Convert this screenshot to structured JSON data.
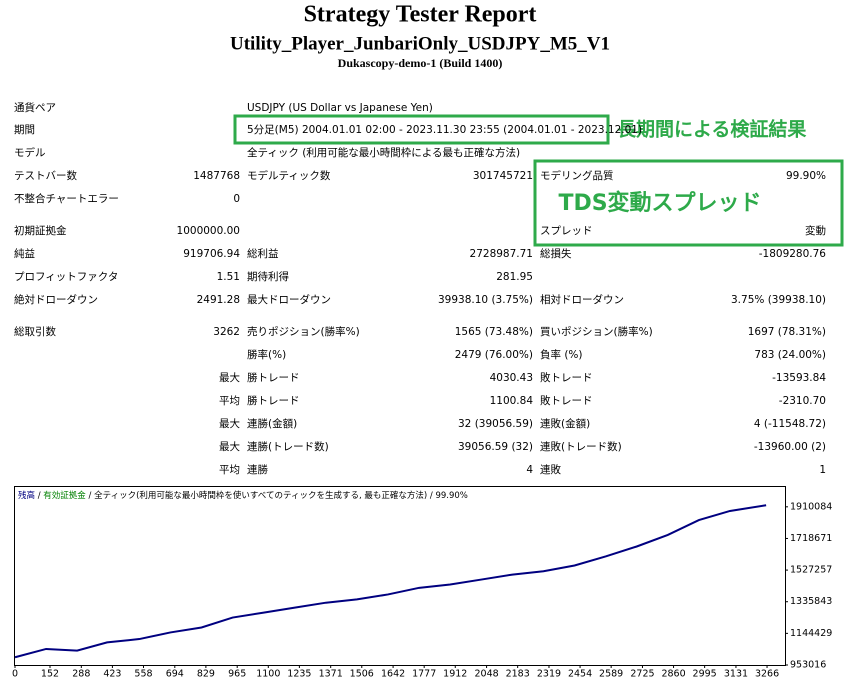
{
  "header": {
    "title": "Strategy Tester Report",
    "subtitle": "Utility_Player_JunbariOnly_USDJPY_M5_V1",
    "server": "Dukascopy-demo-1 (Build 1400)"
  },
  "table": {
    "rows": [
      [
        "通貨ペア",
        null,
        "USDJPY (US Dollar vs Japanese Yen)",
        null,
        null,
        null
      ],
      [
        "期間",
        null,
        "5分足(M5) 2004.01.01 02:00 - 2023.11.30 23:55 (2004.01.01 - 2023.12.01)",
        null,
        null,
        null
      ],
      [
        "モデル",
        null,
        "全ティック (利用可能な最小時間枠による最も正確な方法)",
        null,
        null,
        null
      ],
      [
        "テストバー数",
        "1487768",
        "モデルティック数",
        "301745721",
        "モデリング品質",
        "99.90%"
      ],
      [
        "不整合チャートエラー",
        "0",
        null,
        null,
        null,
        null
      ],
      [
        "初期証拠金",
        "1000000.00",
        null,
        null,
        "スプレッド",
        "変動"
      ],
      [
        "純益",
        "919706.94",
        "総利益",
        "2728987.71",
        "総損失",
        "-1809280.76"
      ],
      [
        "プロフィットファクタ",
        "1.51",
        "期待利得",
        "281.95",
        null,
        null
      ],
      [
        "絶対ドローダウン",
        "2491.28",
        "最大ドローダウン",
        "39938.10 (3.75%)",
        "相対ドローダウン",
        "3.75% (39938.10)"
      ],
      [
        "総取引数",
        "3262",
        "売りポジション(勝率%)",
        "1565 (73.48%)",
        "買いポジション(勝率%)",
        "1697 (78.31%)"
      ],
      [
        null,
        null,
        "勝率(%)",
        "2479 (76.00%)",
        "負率 (%)",
        "783 (24.00%)"
      ],
      [
        null,
        "最大",
        "勝トレード",
        "4030.43",
        "敗トレード",
        "-13593.84"
      ],
      [
        null,
        "平均",
        "勝トレード",
        "1100.84",
        "敗トレード",
        "-2310.70"
      ],
      [
        null,
        "最大",
        "連勝(金額)",
        "32 (39056.59)",
        "連敗(金額)",
        "4 (-11548.72)"
      ],
      [
        null,
        "最大",
        "連勝(トレード数)",
        "39056.59 (32)",
        "連敗(トレード数)",
        "-13960.00 (2)"
      ],
      [
        null,
        "平均",
        "連勝",
        "4",
        "連敗",
        "1"
      ]
    ]
  },
  "annotations": {
    "period_note": "長期間による検証結果",
    "spread_note": "TDS変動スプレッド"
  },
  "chart_data": {
    "type": "line",
    "legend_extra": [
      "有効証拠金",
      "全ティック(利用可能な最小時間枠を使いすべてのティックを生成する, 最も正確な方法)",
      "99.90%"
    ],
    "x": [
      0,
      135,
      270,
      400,
      540,
      675,
      810,
      945,
      1080,
      1215,
      1350,
      1485,
      1620,
      1755,
      1890,
      2025,
      2160,
      2295,
      2430,
      2565,
      2700,
      2835,
      2970,
      3105,
      3262
    ],
    "series": [
      {
        "name": "残高",
        "color": "#000080",
        "values": [
          1000000,
          1050000,
          1040000,
          1090000,
          1110000,
          1150000,
          1180000,
          1240000,
          1270000,
          1300000,
          1330000,
          1350000,
          1380000,
          1420000,
          1440000,
          1470000,
          1500000,
          1520000,
          1555000,
          1610000,
          1670000,
          1740000,
          1830000,
          1885000,
          1919707
        ]
      }
    ],
    "xlim": [
      0,
      3344
    ],
    "ylim": [
      953016,
      2030000
    ],
    "xticks": [
      0,
      152,
      288,
      423,
      558,
      694,
      829,
      965,
      1100,
      1235,
      1371,
      1506,
      1642,
      1777,
      1912,
      2048,
      2183,
      2319,
      2454,
      2589,
      2725,
      2860,
      2995,
      3131,
      3266
    ],
    "yticks": [
      953016,
      1144429,
      1335843,
      1527257,
      1718671,
      1910084
    ]
  }
}
